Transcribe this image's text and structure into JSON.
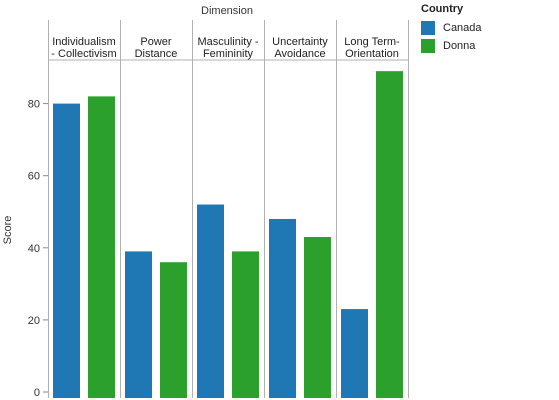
{
  "chart_data": {
    "type": "bar",
    "title": "Dimension",
    "ylabel": "Score",
    "xlabel": "",
    "ylim": [
      0,
      93
    ],
    "yticks": [
      0,
      20,
      40,
      60,
      80
    ],
    "grid": false,
    "legend_placement": "top-right",
    "legend_title": "Country",
    "facets": [
      [
        "Individualism",
        "- Collectivism"
      ],
      [
        "Power",
        "Distance"
      ],
      [
        "Masculinity -",
        "Femininity"
      ],
      [
        "Uncertainty",
        "Avoidance"
      ],
      [
        "Long Term-",
        "Orientation"
      ]
    ],
    "series": [
      {
        "name": "Canada",
        "color": "#1f77b4",
        "values": [
          80,
          39,
          52,
          48,
          23
        ]
      },
      {
        "name": "Donna",
        "color": "#2ca02c",
        "values": [
          82,
          36,
          39,
          43,
          89
        ]
      }
    ]
  }
}
